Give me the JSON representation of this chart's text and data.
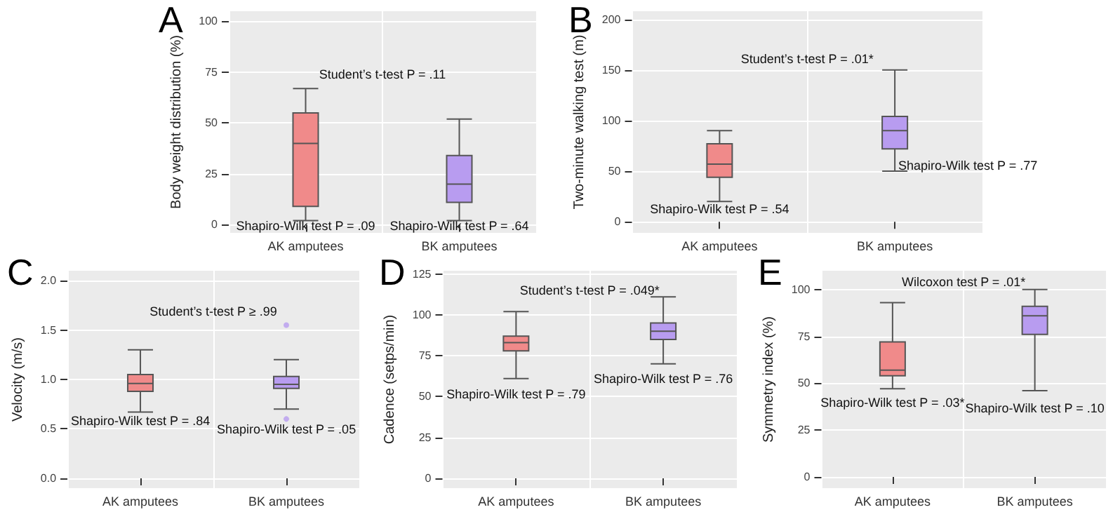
{
  "chart_data": [
    {
      "type": "box",
      "title": "A",
      "ylabel": "Body weight distribution (%)",
      "categories": [
        "AK amputees",
        "BK amputees"
      ],
      "ylim": [
        -4,
        105
      ],
      "yticks": [
        0,
        25,
        50,
        75,
        100
      ],
      "grid": true,
      "series": [
        {
          "colors": [
            "#f08a8a",
            "#b89cf0"
          ],
          "boxes": [
            {
              "low": 2,
              "q1": 9,
              "median": 40,
              "q3": 55,
              "high": 67
            },
            {
              "low": 2,
              "q1": 11,
              "median": 20,
              "q3": 34,
              "high": 52
            }
          ]
        }
      ],
      "annotations": [
        "Student’s t-test P = .11",
        "Shapiro-Wilk test P = .09",
        "Shapiro-Wilk test P = .64"
      ]
    },
    {
      "type": "box",
      "title": "B",
      "ylabel": "Two-minute walking test (m)",
      "categories": [
        "AK amputees",
        "BK amputees"
      ],
      "ylim": [
        -11,
        208
      ],
      "yticks": [
        0,
        50,
        100,
        150,
        200
      ],
      "grid": true,
      "series": [
        {
          "colors": [
            "#f08a8a",
            "#b89cf0"
          ],
          "boxes": [
            {
              "low": 20,
              "q1": 44,
              "median": 57,
              "q3": 77,
              "high": 90
            },
            {
              "low": 50,
              "q1": 72,
              "median": 90,
              "q3": 104,
              "high": 150
            }
          ]
        }
      ],
      "annotations": [
        "Student’s t-test P = .01*",
        "Shapiro-Wilk test P = .54",
        "Shapiro-Wilk test P = .77"
      ]
    },
    {
      "type": "box",
      "title": "C",
      "ylabel": "Velocity (m/s)",
      "categories": [
        "AK amputees",
        "BK amputees"
      ],
      "ylim": [
        -0.1,
        2.1
      ],
      "yticks": [
        {
          "value": 0,
          "label": "0.0"
        },
        {
          "value": 0.5,
          "label": "0.5"
        },
        {
          "value": 1,
          "label": "1.0"
        },
        {
          "value": 1.5,
          "label": "1.5"
        },
        {
          "value": 2,
          "label": "2.0"
        }
      ],
      "grid": true,
      "series": [
        {
          "colors": [
            "#f08a8a",
            "#b89cf0"
          ],
          "boxes": [
            {
              "low": 0.67,
              "q1": 0.88,
              "median": 0.96,
              "q3": 1.05,
              "high": 1.3
            },
            {
              "low": 0.7,
              "q1": 0.91,
              "median": 0.95,
              "q3": 1.03,
              "high": 1.2,
              "outliers": [
                0.6,
                1.55
              ]
            }
          ]
        }
      ],
      "annotations": [
        "Student’s t-test P ≥ .99",
        "Shapiro-Wilk test P = .84",
        "Shapiro-Wilk test P = .05"
      ]
    },
    {
      "type": "box",
      "title": "D",
      "ylabel": "Cadence (setps/min)",
      "categories": [
        "AK amputees",
        "BK amputees"
      ],
      "ylim": [
        -6,
        127
      ],
      "yticks": [
        0,
        25,
        50,
        75,
        100,
        125
      ],
      "grid": true,
      "series": [
        {
          "colors": [
            "#f08a8a",
            "#b89cf0"
          ],
          "boxes": [
            {
              "low": 61,
              "q1": 78,
              "median": 83,
              "q3": 87,
              "high": 102
            },
            {
              "low": 70,
              "q1": 85,
              "median": 90,
              "q3": 95,
              "high": 111
            }
          ]
        }
      ],
      "annotations": [
        "Student’s t-test P = .049*",
        "Shapiro-Wilk test P = .79",
        "Shapiro-Wilk test P = .76"
      ]
    },
    {
      "type": "box",
      "title": "E",
      "ylabel": "Symmetry index (%)",
      "categories": [
        "AK amputees",
        "BK amputees"
      ],
      "ylim": [
        -6,
        110
      ],
      "yticks": [
        0,
        25,
        50,
        75,
        100
      ],
      "grid": true,
      "series": [
        {
          "colors": [
            "#f08a8a",
            "#b89cf0"
          ],
          "boxes": [
            {
              "low": 47,
              "q1": 54,
              "median": 57,
              "q3": 72,
              "high": 93
            },
            {
              "low": 46,
              "q1": 76,
              "median": 86,
              "q3": 91,
              "high": 100
            }
          ]
        }
      ],
      "annotations": [
        "Wilcoxon test P = .01*",
        "Shapiro-Wilk test P = .03*",
        "Shapiro-Wilk test P = .10"
      ]
    }
  ]
}
